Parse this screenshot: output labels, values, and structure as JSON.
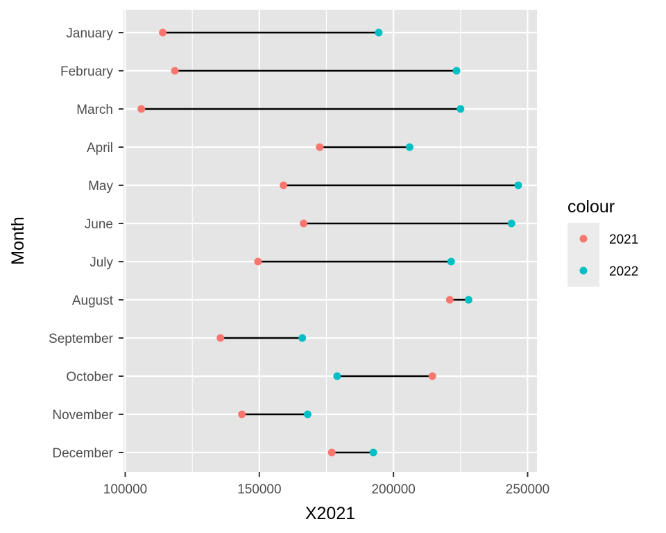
{
  "chart_data": {
    "type": "dumbbell",
    "xlabel": "X2021",
    "ylabel": "Month",
    "xlim": [
      100000,
      250000
    ],
    "x_ticks": [
      100000,
      150000,
      200000,
      250000
    ],
    "x_tick_labels": [
      "100000",
      "150000",
      "200000",
      "250000"
    ],
    "grid": true,
    "legend": {
      "title": "colour",
      "placement": "right",
      "entries": [
        {
          "label": "2021",
          "color": "#F8766D"
        },
        {
          "label": "2022",
          "color": "#00BFC4"
        }
      ]
    },
    "categories": [
      "January",
      "February",
      "March",
      "April",
      "May",
      "June",
      "July",
      "August",
      "September",
      "October",
      "November",
      "December"
    ],
    "series": [
      {
        "name": "2021",
        "color": "#F8766D",
        "values": [
          114000,
          118500,
          106000,
          172500,
          159000,
          166500,
          149500,
          221000,
          135500,
          214500,
          143500,
          177000
        ]
      },
      {
        "name": "2022",
        "color": "#00BFC4",
        "values": [
          194500,
          223500,
          225000,
          206000,
          246500,
          244000,
          221500,
          228000,
          166000,
          179000,
          168000,
          192500
        ]
      }
    ]
  }
}
